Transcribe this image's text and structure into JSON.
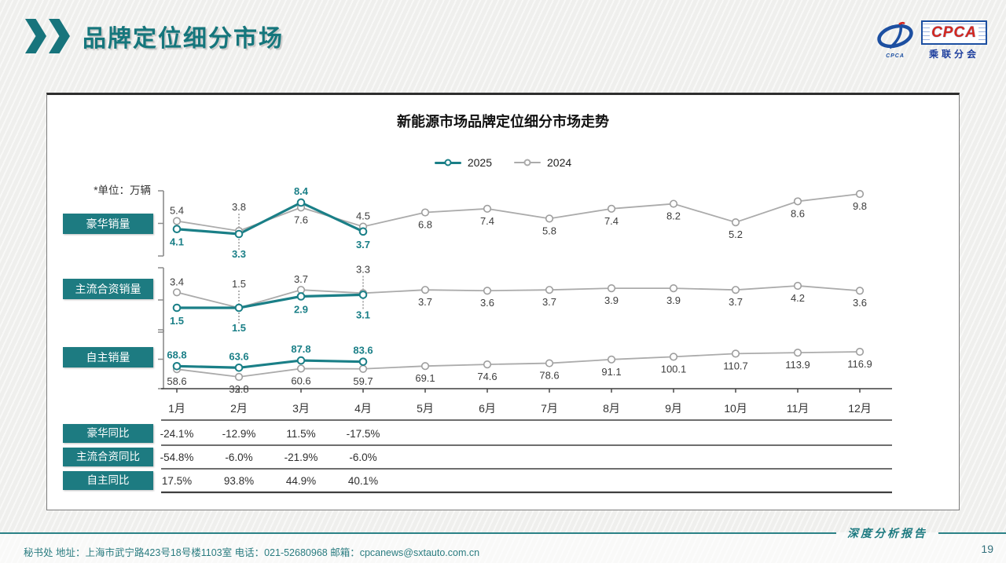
{
  "header": {
    "title": "品牌定位细分市场"
  },
  "logo": {
    "cpca": "CPCA",
    "caption": "CPCA",
    "subtitle": "乘联分会"
  },
  "chart_data": {
    "type": "line",
    "title": "新能源市场品牌定位细分市场走势",
    "unit_note": "*单位：万辆",
    "legend": [
      {
        "label": "2025",
        "color": "#1a7f87"
      },
      {
        "label": "2024",
        "color": "#ababab"
      }
    ],
    "x": [
      "1月",
      "2月",
      "3月",
      "4月",
      "5月",
      "6月",
      "7月",
      "8月",
      "9月",
      "10月",
      "11月",
      "12月"
    ],
    "panels": [
      {
        "label": "豪华销量",
        "ylim": [
          3.3,
          9.8
        ],
        "series": [
          {
            "name": "2025",
            "values": [
              4.1,
              3.3,
              8.4,
              3.7
            ]
          },
          {
            "name": "2024",
            "values": [
              5.4,
              3.8,
              7.6,
              4.5,
              6.8,
              7.4,
              5.8,
              7.4,
              8.2,
              5.2,
              8.6,
              9.8
            ]
          }
        ]
      },
      {
        "label": "主流合资销量",
        "ylim": [
          1.5,
          4.2
        ],
        "series": [
          {
            "name": "2025",
            "values": [
              1.5,
              1.5,
              2.9,
              3.1
            ]
          },
          {
            "name": "2024",
            "values": [
              3.4,
              1.5,
              3.7,
              3.3,
              3.7,
              3.6,
              3.7,
              3.9,
              3.9,
              3.7,
              4.2,
              3.6
            ]
          }
        ]
      },
      {
        "label": "自主销量",
        "ylim": [
          32.8,
          116.9
        ],
        "series": [
          {
            "name": "2025",
            "values": [
              68.8,
              63.6,
              87.8,
              83.6
            ]
          },
          {
            "name": "2024",
            "values": [
              58.6,
              32.8,
              60.6,
              59.7,
              69.1,
              74.6,
              78.6,
              91.1,
              100.1,
              110.7,
              113.9,
              116.9
            ]
          }
        ]
      }
    ],
    "yoy_table": [
      {
        "label": "豪华同比",
        "values": [
          "-24.1%",
          "-12.9%",
          "11.5%",
          "-17.5%"
        ]
      },
      {
        "label": "主流合资同比",
        "values": [
          "-54.8%",
          "-6.0%",
          "-21.9%",
          "-6.0%"
        ]
      },
      {
        "label": "自主同比",
        "values": [
          "17.5%",
          "93.8%",
          "44.9%",
          "40.1%"
        ]
      }
    ]
  },
  "colors": {
    "accent": "#17747c",
    "badge": "#1d7b81",
    "line2025": "#1a7f87",
    "line2024": "#ababab",
    "label2024": "#3d3d3d",
    "table_line": "#3f3f3f"
  },
  "footer": {
    "info": "秘书处   地址：上海市武宁路423号18号楼1103室  电话：021-52680968   邮箱：cpcanews@sxtauto.com.cn",
    "report_label": "深度分析报告",
    "page": "19"
  }
}
